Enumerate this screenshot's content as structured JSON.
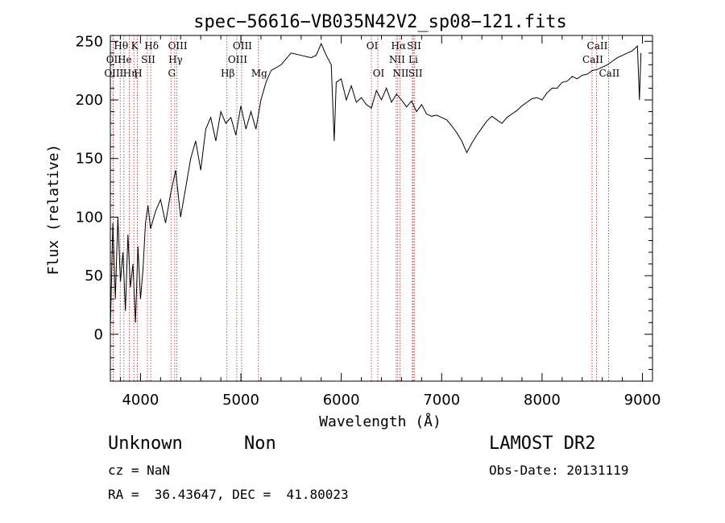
{
  "chart_data": {
    "type": "line",
    "title": "spec−56616−VB035N42V2_sp08−121.fits",
    "xlabel": "Wavelength (Å)",
    "ylabel": "Flux (relative)",
    "xlim": [
      3700,
      9100
    ],
    "ylim": [
      -40,
      255
    ],
    "xticks": [
      4000,
      5000,
      6000,
      7000,
      8000,
      9000
    ],
    "yticks": [
      0,
      50,
      100,
      150,
      200,
      250
    ],
    "grid": false,
    "series": [
      {
        "x": [
          3700,
          3725,
          3750,
          3775,
          3800,
          3825,
          3850,
          3875,
          3900,
          3925,
          3950,
          3975,
          4000,
          4025,
          4050,
          4075,
          4100,
          4150,
          4200,
          4250,
          4300,
          4350,
          4400,
          4450,
          4500,
          4550,
          4600,
          4650,
          4700,
          4750,
          4800,
          4850,
          4900,
          4950,
          5000,
          5050,
          5100,
          5150,
          5200,
          5250,
          5300,
          5400,
          5500,
          5600,
          5700,
          5750,
          5800,
          5850,
          5900,
          5930,
          5950,
          6000,
          6050,
          6100,
          6150,
          6200,
          6250,
          6300,
          6350,
          6400,
          6450,
          6500,
          6550,
          6600,
          6650,
          6700,
          6750,
          6800,
          6850,
          6900,
          6950,
          7000,
          7050,
          7100,
          7150,
          7200,
          7250,
          7300,
          7350,
          7400,
          7450,
          7500,
          7550,
          7600,
          7650,
          7700,
          7750,
          7800,
          7850,
          7900,
          7950,
          8000,
          8050,
          8100,
          8150,
          8200,
          8250,
          8300,
          8350,
          8400,
          8450,
          8500,
          8550,
          8600,
          8650,
          8700,
          8750,
          8800,
          8850,
          8900,
          8950,
          8970,
          8985
        ],
        "values": [
          5,
          95,
          30,
          100,
          45,
          70,
          20,
          85,
          40,
          60,
          10,
          75,
          30,
          55,
          95,
          110,
          90,
          105,
          115,
          95,
          120,
          140,
          100,
          125,
          150,
          165,
          140,
          175,
          185,
          165,
          190,
          180,
          185,
          170,
          195,
          175,
          190,
          175,
          200,
          215,
          225,
          230,
          240,
          238,
          236,
          238,
          248,
          238,
          230,
          165,
          215,
          218,
          200,
          212,
          198,
          202,
          196,
          193,
          208,
          200,
          210,
          198,
          205,
          200,
          194,
          199,
          190,
          196,
          188,
          186,
          187,
          185,
          183,
          178,
          172,
          165,
          155,
          163,
          170,
          176,
          182,
          186,
          183,
          180,
          185,
          188,
          191,
          195,
          198,
          201,
          202,
          200,
          206,
          210,
          210,
          215,
          216,
          220,
          218,
          221,
          222,
          225,
          226,
          228,
          230,
          233,
          236,
          238,
          240,
          242,
          246,
          200,
          240
        ]
      }
    ],
    "line_markers": [
      {
        "label": "Hθ",
        "x": 3798,
        "row": 1
      },
      {
        "label": "OII",
        "x": 3727,
        "row": 2
      },
      {
        "label": "OIII",
        "x": 3727,
        "row": 3
      },
      {
        "label": "He",
        "x": 3835,
        "row": 2
      },
      {
        "label": "Hη",
        "x": 3889,
        "row": 3
      },
      {
        "label": "K",
        "x": 3934,
        "row": 1
      },
      {
        "label": "H",
        "x": 3968,
        "row": 3
      },
      {
        "label": "SII",
        "x": 4069,
        "row": 2
      },
      {
        "label": "Hδ",
        "x": 4102,
        "row": 1
      },
      {
        "label": "OIII",
        "x": 4363,
        "row": 1
      },
      {
        "label": "Hγ",
        "x": 4341,
        "row": 2
      },
      {
        "label": "G",
        "x": 4304,
        "row": 3
      },
      {
        "label": "Hβ",
        "x": 4861,
        "row": 3
      },
      {
        "label": "OIII",
        "x": 4959,
        "row": 2
      },
      {
        "label": "OIII",
        "x": 5007,
        "row": 1
      },
      {
        "label": "Mg",
        "x": 5175,
        "row": 3
      },
      {
        "label": "OI",
        "x": 6300,
        "row": 1
      },
      {
        "label": "OI",
        "x": 6364,
        "row": 3
      },
      {
        "label": "Hα",
        "x": 6563,
        "row": 1
      },
      {
        "label": "NII",
        "x": 6548,
        "row": 2
      },
      {
        "label": "NII",
        "x": 6584,
        "row": 3
      },
      {
        "label": "SII",
        "x": 6717,
        "row": 1
      },
      {
        "label": "Li",
        "x": 6708,
        "row": 2
      },
      {
        "label": "SII",
        "x": 6731,
        "row": 3
      },
      {
        "label": "CaII",
        "x": 8542,
        "row": 1
      },
      {
        "label": "CaII",
        "x": 8498,
        "row": 2
      },
      {
        "label": "CaII",
        "x": 8662,
        "row": 3
      }
    ]
  },
  "info": {
    "object_class": "Unknown",
    "subclass": "Non",
    "survey": "LAMOST DR2",
    "cz": "cz = NaN",
    "obs_date": "Obs-Date: 20131119",
    "coords": "RA =  36.43647, DEC =  41.80023"
  }
}
